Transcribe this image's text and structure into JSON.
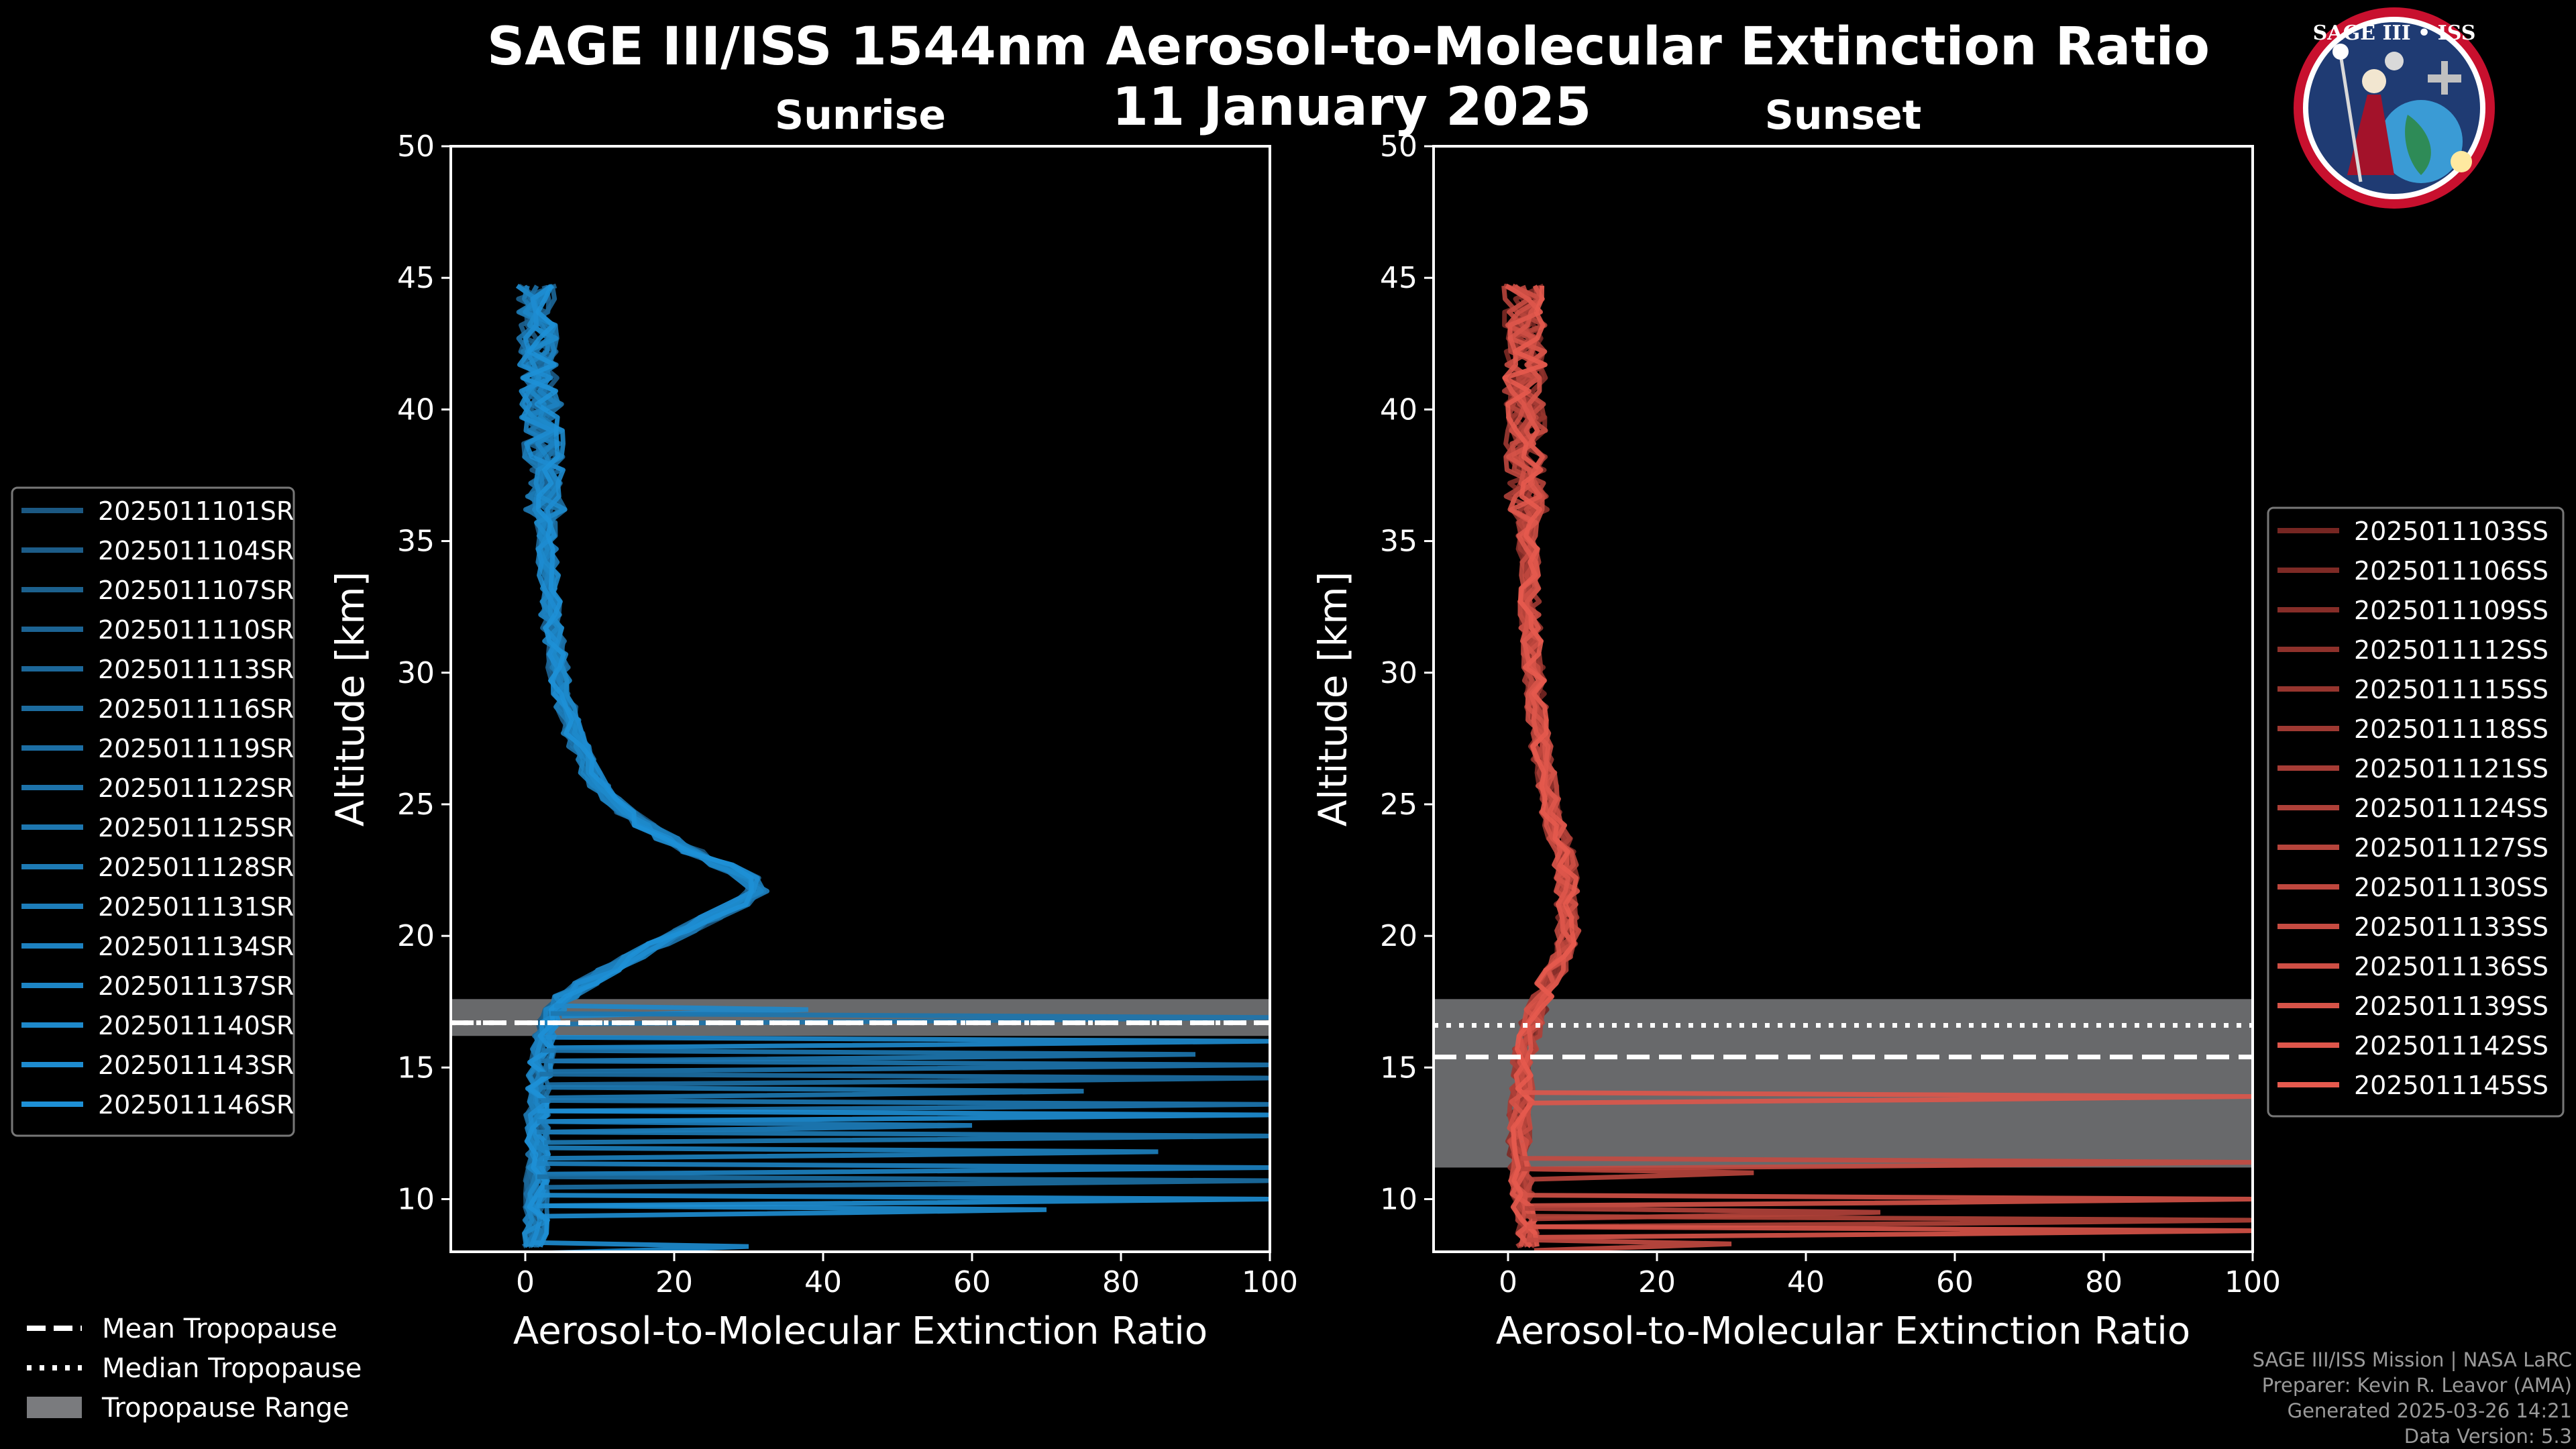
{
  "figure": {
    "title_line1": "SAGE III/ISS 1544nm Aerosol-to-Molecular Extinction Ratio",
    "title_line2": "11 January 2025",
    "credits": [
      "SAGE III/ISS Mission | NASA LaRC",
      "Preparer: Kevin R. Leavor (AMA)",
      "Generated 2025-03-26 14:21",
      "Data Version: 5.3"
    ],
    "logo": {
      "name": "sage-iii-iss-mission-patch",
      "top_text": "SAGE III • ISS",
      "colors": [
        "#1f3b73",
        "#c8102e",
        "#ffffff",
        "#3a9bd5"
      ]
    }
  },
  "common_legend": {
    "items": [
      {
        "label": "Mean Tropopause",
        "style": "dashed",
        "color": "#ffffff"
      },
      {
        "label": "Median Tropopause",
        "style": "dotted",
        "color": "#ffffff"
      },
      {
        "label": "Tropopause Range",
        "style": "patch",
        "color": "#7a7b7e"
      }
    ]
  },
  "chart_data": [
    {
      "type": "line",
      "panel": "sunrise",
      "title": "Sunrise",
      "xlabel": "Aerosol-to-Molecular Extinction Ratio",
      "ylabel": "Altitude [km]",
      "xlim": [
        -10,
        100
      ],
      "ylim": [
        8,
        50
      ],
      "xticks": [
        0,
        20,
        40,
        60,
        80,
        100
      ],
      "yticks": [
        10,
        15,
        20,
        25,
        30,
        35,
        40,
        45
      ],
      "grid": false,
      "legend_position": "left",
      "color_base": "#1e90d6",
      "tropopause": {
        "mean": 16.7,
        "median": 16.7,
        "range": [
          16.2,
          17.6
        ]
      },
      "profile_shape": {
        "altitude": [
          8.2,
          9,
          10,
          11,
          12,
          13,
          14,
          15,
          16,
          16.5,
          17,
          17.5,
          18,
          19,
          20,
          21,
          21.5,
          22,
          22.5,
          23,
          24,
          25,
          26,
          27,
          28,
          30,
          32,
          34,
          36,
          38,
          40,
          42,
          44,
          45
        ],
        "ratio": [
          1.0,
          1.5,
          1.6,
          1.6,
          1.5,
          1.6,
          1.8,
          2.0,
          2.5,
          3.0,
          3.5,
          4.5,
          7,
          13,
          20,
          27,
          31,
          31,
          28,
          24,
          17,
          12,
          9,
          7.5,
          6,
          4.5,
          3.5,
          3.0,
          2.8,
          2.4,
          2.2,
          2.0,
          1.6,
          1.5
        ]
      },
      "series": [
        {
          "name": "2025011101SR"
        },
        {
          "name": "2025011104SR"
        },
        {
          "name": "2025011107SR"
        },
        {
          "name": "2025011110SR"
        },
        {
          "name": "2025011113SR"
        },
        {
          "name": "2025011116SR"
        },
        {
          "name": "2025011119SR"
        },
        {
          "name": "2025011122SR"
        },
        {
          "name": "2025011125SR"
        },
        {
          "name": "2025011128SR"
        },
        {
          "name": "2025011131SR"
        },
        {
          "name": "2025011134SR"
        },
        {
          "name": "2025011137SR"
        },
        {
          "name": "2025011140SR"
        },
        {
          "name": "2025011143SR"
        },
        {
          "name": "2025011146SR"
        }
      ],
      "cloud_spikes": [
        {
          "alt": 17.2,
          "max": 38
        },
        {
          "alt": 16.9,
          "max": 100
        },
        {
          "alt": 16.0,
          "max": 100
        },
        {
          "alt": 15.5,
          "max": 90
        },
        {
          "alt": 15.1,
          "max": 100
        },
        {
          "alt": 14.6,
          "max": 100
        },
        {
          "alt": 14.1,
          "max": 75
        },
        {
          "alt": 13.6,
          "max": 100
        },
        {
          "alt": 13.2,
          "max": 100
        },
        {
          "alt": 12.8,
          "max": 60
        },
        {
          "alt": 12.4,
          "max": 100
        },
        {
          "alt": 11.8,
          "max": 85
        },
        {
          "alt": 11.2,
          "max": 100
        },
        {
          "alt": 10.7,
          "max": 100
        },
        {
          "alt": 10.0,
          "max": 100
        },
        {
          "alt": 9.6,
          "max": 70
        },
        {
          "alt": 8.2,
          "max": 30
        }
      ]
    },
    {
      "type": "line",
      "panel": "sunset",
      "title": "Sunset",
      "xlabel": "Aerosol-to-Molecular Extinction Ratio",
      "ylabel": "Altitude [km]",
      "xlim": [
        -10,
        100
      ],
      "ylim": [
        8,
        50
      ],
      "xticks": [
        0,
        20,
        40,
        60,
        80,
        100
      ],
      "yticks": [
        10,
        15,
        20,
        25,
        30,
        35,
        40,
        45
      ],
      "grid": false,
      "legend_position": "right",
      "color_base": "#e65a4e",
      "tropopause": {
        "mean": 15.4,
        "median": 16.6,
        "range": [
          11.2,
          17.6
        ]
      },
      "profile_shape": {
        "altitude": [
          8.2,
          9,
          10,
          11,
          12,
          13,
          14,
          15,
          16,
          17,
          18,
          19,
          20,
          21,
          21.5,
          22,
          23,
          24,
          25,
          26,
          28,
          30,
          32,
          34,
          36,
          38,
          40,
          42,
          44,
          45
        ],
        "ratio": [
          2.5,
          2.5,
          2.0,
          1.8,
          1.5,
          1.5,
          1.8,
          2.0,
          2.5,
          3.5,
          5,
          7,
          8,
          8,
          8,
          8,
          7.5,
          6.5,
          5.5,
          5,
          4,
          3.5,
          3.0,
          2.8,
          2.6,
          2.4,
          2.3,
          2.2,
          2.2,
          2.2
        ]
      },
      "series": [
        {
          "name": "2025011103SS"
        },
        {
          "name": "2025011106SS"
        },
        {
          "name": "2025011109SS"
        },
        {
          "name": "2025011112SS"
        },
        {
          "name": "2025011115SS"
        },
        {
          "name": "2025011118SS"
        },
        {
          "name": "2025011121SS"
        },
        {
          "name": "2025011124SS"
        },
        {
          "name": "2025011127SS"
        },
        {
          "name": "2025011130SS"
        },
        {
          "name": "2025011133SS"
        },
        {
          "name": "2025011136SS"
        },
        {
          "name": "2025011139SS"
        },
        {
          "name": "2025011142SS"
        },
        {
          "name": "2025011145SS"
        }
      ],
      "cloud_spikes": [
        {
          "alt": 13.9,
          "max": 100
        },
        {
          "alt": 11.4,
          "max": 100
        },
        {
          "alt": 11.0,
          "max": 33
        },
        {
          "alt": 10.0,
          "max": 100
        },
        {
          "alt": 9.5,
          "max": 50
        },
        {
          "alt": 9.2,
          "max": 100
        },
        {
          "alt": 8.8,
          "max": 100
        },
        {
          "alt": 8.3,
          "max": 30
        }
      ]
    }
  ]
}
